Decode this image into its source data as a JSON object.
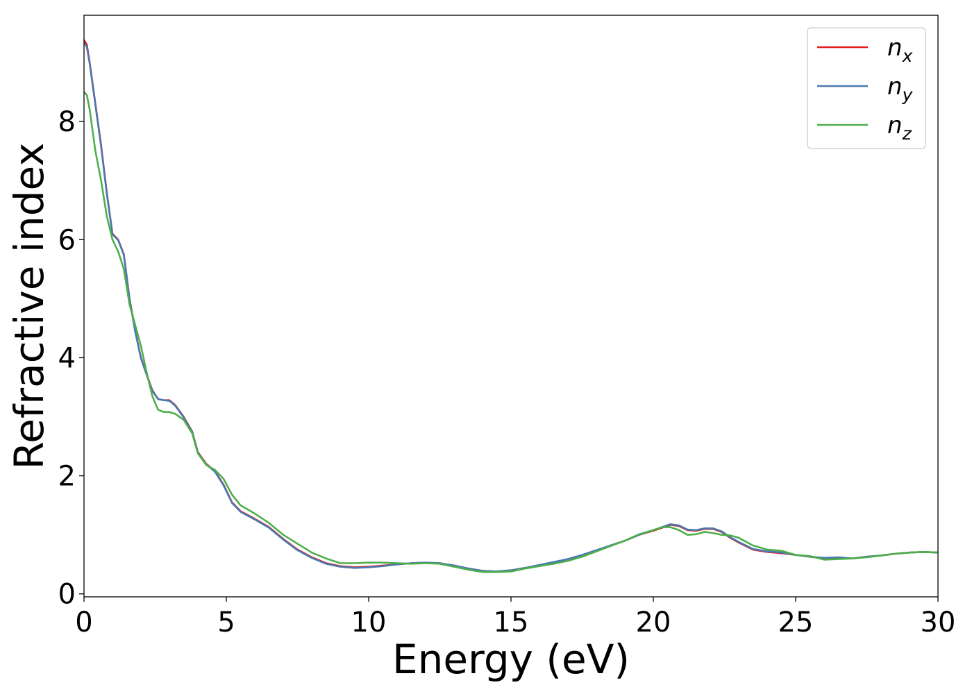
{
  "chart_data": {
    "type": "line",
    "title": "",
    "xlabel": "Energy (eV)",
    "ylabel": "Refractive index",
    "xlim": [
      0,
      30
    ],
    "ylim": [
      -0.05,
      9.8
    ],
    "xticks": [
      0,
      5,
      10,
      15,
      20,
      25,
      30
    ],
    "yticks": [
      0,
      2,
      4,
      6,
      8
    ],
    "grid": false,
    "legend_position": "top-right",
    "series": [
      {
        "name": "n_x",
        "label_base": "n",
        "label_sub": "x",
        "color": "#e41a1c",
        "points": [
          [
            0,
            9.38
          ],
          [
            0.1,
            9.3
          ],
          [
            0.2,
            9.0
          ],
          [
            0.4,
            8.3
          ],
          [
            0.6,
            7.6
          ],
          [
            0.8,
            6.8
          ],
          [
            1.0,
            6.1
          ],
          [
            1.2,
            6.0
          ],
          [
            1.4,
            5.75
          ],
          [
            1.6,
            5.0
          ],
          [
            1.8,
            4.45
          ],
          [
            2.0,
            4.0
          ],
          [
            2.2,
            3.72
          ],
          [
            2.4,
            3.45
          ],
          [
            2.6,
            3.3
          ],
          [
            2.8,
            3.28
          ],
          [
            3.0,
            3.28
          ],
          [
            3.2,
            3.2
          ],
          [
            3.5,
            3.0
          ],
          [
            3.8,
            2.75
          ],
          [
            4.0,
            2.4
          ],
          [
            4.3,
            2.2
          ],
          [
            4.6,
            2.08
          ],
          [
            4.9,
            1.85
          ],
          [
            5.2,
            1.55
          ],
          [
            5.5,
            1.4
          ],
          [
            6.0,
            1.27
          ],
          [
            6.5,
            1.13
          ],
          [
            7.0,
            0.93
          ],
          [
            7.5,
            0.75
          ],
          [
            8.0,
            0.62
          ],
          [
            8.5,
            0.52
          ],
          [
            9.0,
            0.47
          ],
          [
            9.5,
            0.45
          ],
          [
            10.0,
            0.46
          ],
          [
            10.5,
            0.48
          ],
          [
            11.0,
            0.5
          ],
          [
            11.5,
            0.52
          ],
          [
            12.0,
            0.53
          ],
          [
            12.5,
            0.52
          ],
          [
            13.0,
            0.48
          ],
          [
            13.5,
            0.43
          ],
          [
            14.0,
            0.39
          ],
          [
            14.5,
            0.38
          ],
          [
            15.0,
            0.4
          ],
          [
            15.5,
            0.44
          ],
          [
            16.0,
            0.48
          ],
          [
            16.5,
            0.53
          ],
          [
            17.0,
            0.58
          ],
          [
            17.5,
            0.65
          ],
          [
            18.0,
            0.73
          ],
          [
            18.5,
            0.82
          ],
          [
            19.0,
            0.9
          ],
          [
            19.5,
            1.0
          ],
          [
            20.0,
            1.07
          ],
          [
            20.3,
            1.12
          ],
          [
            20.6,
            1.17
          ],
          [
            20.9,
            1.15
          ],
          [
            21.2,
            1.08
          ],
          [
            21.5,
            1.07
          ],
          [
            21.8,
            1.1
          ],
          [
            22.1,
            1.1
          ],
          [
            22.4,
            1.05
          ],
          [
            22.7,
            0.95
          ],
          [
            23.0,
            0.87
          ],
          [
            23.5,
            0.75
          ],
          [
            24.0,
            0.71
          ],
          [
            24.5,
            0.69
          ],
          [
            25.0,
            0.66
          ],
          [
            25.5,
            0.63
          ],
          [
            26.0,
            0.6
          ],
          [
            26.5,
            0.61
          ],
          [
            27.0,
            0.6
          ],
          [
            27.5,
            0.63
          ],
          [
            28.0,
            0.65
          ],
          [
            28.5,
            0.68
          ],
          [
            29.0,
            0.7
          ],
          [
            29.5,
            0.71
          ],
          [
            30.0,
            0.7
          ]
        ]
      },
      {
        "name": "n_y",
        "label_base": "n",
        "label_sub": "y",
        "color": "#4a79b0",
        "points": [
          [
            0,
            9.34
          ],
          [
            0.1,
            9.26
          ],
          [
            0.2,
            8.98
          ],
          [
            0.4,
            8.28
          ],
          [
            0.6,
            7.58
          ],
          [
            0.8,
            6.78
          ],
          [
            1.0,
            6.09
          ],
          [
            1.2,
            5.99
          ],
          [
            1.4,
            5.74
          ],
          [
            1.6,
            4.99
          ],
          [
            1.8,
            4.44
          ],
          [
            2.0,
            3.99
          ],
          [
            2.2,
            3.71
          ],
          [
            2.4,
            3.44
          ],
          [
            2.6,
            3.3
          ],
          [
            2.8,
            3.28
          ],
          [
            3.0,
            3.27
          ],
          [
            3.2,
            3.19
          ],
          [
            3.5,
            2.99
          ],
          [
            3.8,
            2.74
          ],
          [
            4.0,
            2.39
          ],
          [
            4.3,
            2.19
          ],
          [
            4.6,
            2.07
          ],
          [
            4.9,
            1.84
          ],
          [
            5.2,
            1.54
          ],
          [
            5.5,
            1.39
          ],
          [
            6.0,
            1.26
          ],
          [
            6.5,
            1.12
          ],
          [
            7.0,
            0.92
          ],
          [
            7.5,
            0.74
          ],
          [
            8.0,
            0.61
          ],
          [
            8.5,
            0.51
          ],
          [
            9.0,
            0.46
          ],
          [
            9.5,
            0.44
          ],
          [
            10.0,
            0.45
          ],
          [
            10.5,
            0.47
          ],
          [
            11.0,
            0.5
          ],
          [
            11.5,
            0.52
          ],
          [
            12.0,
            0.53
          ],
          [
            12.5,
            0.52
          ],
          [
            13.0,
            0.48
          ],
          [
            13.5,
            0.43
          ],
          [
            14.0,
            0.39
          ],
          [
            14.5,
            0.38
          ],
          [
            15.0,
            0.4
          ],
          [
            15.5,
            0.44
          ],
          [
            16.0,
            0.49
          ],
          [
            16.5,
            0.54
          ],
          [
            17.0,
            0.59
          ],
          [
            17.5,
            0.66
          ],
          [
            18.0,
            0.74
          ],
          [
            18.5,
            0.82
          ],
          [
            19.0,
            0.9
          ],
          [
            19.5,
            1.0
          ],
          [
            20.0,
            1.08
          ],
          [
            20.3,
            1.13
          ],
          [
            20.6,
            1.18
          ],
          [
            20.9,
            1.16
          ],
          [
            21.2,
            1.09
          ],
          [
            21.5,
            1.08
          ],
          [
            21.8,
            1.11
          ],
          [
            22.1,
            1.11
          ],
          [
            22.4,
            1.06
          ],
          [
            22.7,
            0.96
          ],
          [
            23.0,
            0.88
          ],
          [
            23.5,
            0.76
          ],
          [
            24.0,
            0.72
          ],
          [
            24.5,
            0.7
          ],
          [
            25.0,
            0.66
          ],
          [
            25.5,
            0.63
          ],
          [
            26.0,
            0.61
          ],
          [
            26.5,
            0.62
          ],
          [
            27.0,
            0.6
          ],
          [
            27.5,
            0.63
          ],
          [
            28.0,
            0.65
          ],
          [
            28.5,
            0.68
          ],
          [
            29.0,
            0.7
          ],
          [
            29.5,
            0.71
          ],
          [
            30.0,
            0.7
          ]
        ]
      },
      {
        "name": "n_z",
        "label_base": "n",
        "label_sub": "z",
        "color": "#4daf4a",
        "points": [
          [
            0,
            8.5
          ],
          [
            0.1,
            8.45
          ],
          [
            0.2,
            8.2
          ],
          [
            0.4,
            7.5
          ],
          [
            0.6,
            7.0
          ],
          [
            0.8,
            6.4
          ],
          [
            1.0,
            6.0
          ],
          [
            1.2,
            5.8
          ],
          [
            1.4,
            5.5
          ],
          [
            1.6,
            4.9
          ],
          [
            1.8,
            4.55
          ],
          [
            2.0,
            4.2
          ],
          [
            2.2,
            3.75
          ],
          [
            2.4,
            3.35
          ],
          [
            2.6,
            3.12
          ],
          [
            2.8,
            3.08
          ],
          [
            3.0,
            3.08
          ],
          [
            3.2,
            3.05
          ],
          [
            3.5,
            2.95
          ],
          [
            3.8,
            2.72
          ],
          [
            4.0,
            2.38
          ],
          [
            4.3,
            2.18
          ],
          [
            4.6,
            2.1
          ],
          [
            4.9,
            1.95
          ],
          [
            5.2,
            1.68
          ],
          [
            5.5,
            1.5
          ],
          [
            6.0,
            1.36
          ],
          [
            6.5,
            1.2
          ],
          [
            7.0,
            1.0
          ],
          [
            7.5,
            0.85
          ],
          [
            8.0,
            0.7
          ],
          [
            8.5,
            0.6
          ],
          [
            9.0,
            0.52
          ],
          [
            9.5,
            0.52
          ],
          [
            10.0,
            0.53
          ],
          [
            10.5,
            0.53
          ],
          [
            11.0,
            0.52
          ],
          [
            11.5,
            0.51
          ],
          [
            12.0,
            0.52
          ],
          [
            12.5,
            0.51
          ],
          [
            13.0,
            0.46
          ],
          [
            13.5,
            0.41
          ],
          [
            14.0,
            0.37
          ],
          [
            14.5,
            0.37
          ],
          [
            15.0,
            0.38
          ],
          [
            15.5,
            0.43
          ],
          [
            16.0,
            0.47
          ],
          [
            16.5,
            0.51
          ],
          [
            17.0,
            0.56
          ],
          [
            17.5,
            0.63
          ],
          [
            18.0,
            0.72
          ],
          [
            18.5,
            0.81
          ],
          [
            19.0,
            0.9
          ],
          [
            19.5,
            1.01
          ],
          [
            20.0,
            1.08
          ],
          [
            20.3,
            1.13
          ],
          [
            20.6,
            1.13
          ],
          [
            20.9,
            1.08
          ],
          [
            21.2,
            1.0
          ],
          [
            21.5,
            1.01
          ],
          [
            21.8,
            1.05
          ],
          [
            22.1,
            1.03
          ],
          [
            22.4,
            1.0
          ],
          [
            22.7,
            0.99
          ],
          [
            23.0,
            0.95
          ],
          [
            23.5,
            0.82
          ],
          [
            24.0,
            0.75
          ],
          [
            24.5,
            0.73
          ],
          [
            25.0,
            0.66
          ],
          [
            25.5,
            0.64
          ],
          [
            26.0,
            0.58
          ],
          [
            26.5,
            0.59
          ],
          [
            27.0,
            0.6
          ],
          [
            27.5,
            0.62
          ],
          [
            28.0,
            0.65
          ],
          [
            28.5,
            0.68
          ],
          [
            29.0,
            0.7
          ],
          [
            29.5,
            0.71
          ],
          [
            30.0,
            0.7
          ]
        ]
      }
    ]
  }
}
